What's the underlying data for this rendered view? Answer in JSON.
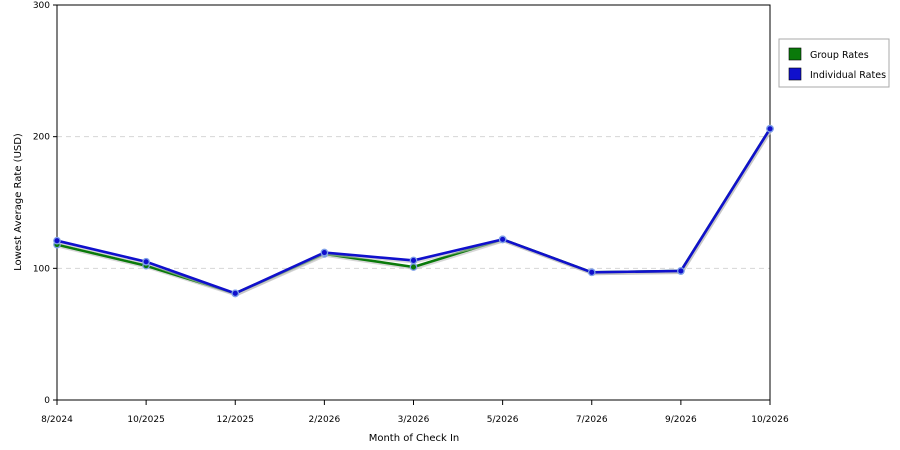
{
  "chart_data": {
    "type": "line",
    "title": "",
    "xlabel": "Month of Check In",
    "ylabel": "Lowest Average Rate (USD)",
    "categories": [
      "8/2024",
      "10/2025",
      "12/2025",
      "2/2026",
      "3/2026",
      "5/2026",
      "7/2026",
      "9/2026",
      "10/2026"
    ],
    "ylim": [
      0,
      300
    ],
    "yticks": [
      0,
      100,
      200,
      300
    ],
    "ytick_labels": [
      "0",
      "100",
      "200",
      "300"
    ],
    "grid": "horizontal dashed at 100 and 200",
    "legend_position": "right",
    "series": [
      {
        "name": "Group Rates",
        "color": "#0a7a0a",
        "values": [
          118,
          102,
          81,
          111,
          101,
          122,
          97,
          98,
          206
        ]
      },
      {
        "name": "Individual Rates",
        "color": "#1010cc",
        "values": [
          121,
          105,
          81,
          112,
          106,
          122,
          97,
          98,
          206
        ]
      }
    ]
  }
}
